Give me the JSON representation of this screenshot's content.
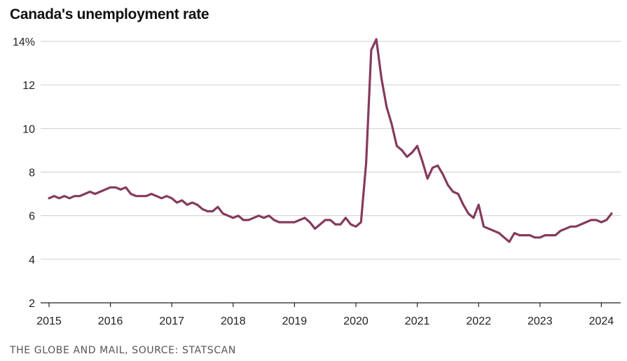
{
  "chart_data": {
    "type": "line",
    "title": "Canada's unemployment rate",
    "xlabel": "",
    "ylabel": "",
    "ylim": [
      2,
      14
    ],
    "xlim": [
      2015.0,
      2024.25
    ],
    "y_ticks": [
      {
        "value": 14,
        "label": "14%"
      },
      {
        "value": 12,
        "label": "12"
      },
      {
        "value": 10,
        "label": "10"
      },
      {
        "value": 8,
        "label": "8"
      },
      {
        "value": 6,
        "label": "6"
      },
      {
        "value": 4,
        "label": "4"
      },
      {
        "value": 2,
        "label": "2"
      }
    ],
    "x_ticks": [
      {
        "value": 2015,
        "label": "2015"
      },
      {
        "value": 2016,
        "label": "2016"
      },
      {
        "value": 2017,
        "label": "2017"
      },
      {
        "value": 2018,
        "label": "2018"
      },
      {
        "value": 2019,
        "label": "2019"
      },
      {
        "value": 2020,
        "label": "2020"
      },
      {
        "value": 2021,
        "label": "2021"
      },
      {
        "value": 2022,
        "label": "2022"
      },
      {
        "value": 2023,
        "label": "2023"
      },
      {
        "value": 2024,
        "label": "2024"
      }
    ],
    "grid": true,
    "line_color": "#853a5e",
    "series": [
      {
        "name": "Unemployment rate",
        "start": 2015.0,
        "step": 0.0833333,
        "values": [
          6.8,
          6.9,
          6.8,
          6.9,
          6.8,
          6.9,
          6.9,
          7.0,
          7.1,
          7.0,
          7.1,
          7.2,
          7.3,
          7.3,
          7.2,
          7.3,
          7.0,
          6.9,
          6.9,
          6.9,
          7.0,
          6.9,
          6.8,
          6.9,
          6.8,
          6.6,
          6.7,
          6.5,
          6.6,
          6.5,
          6.3,
          6.2,
          6.2,
          6.4,
          6.1,
          6.0,
          5.9,
          6.0,
          5.8,
          5.8,
          5.9,
          6.0,
          5.9,
          6.0,
          5.8,
          5.7,
          5.7,
          5.7,
          5.7,
          5.8,
          5.9,
          5.7,
          5.4,
          5.6,
          5.8,
          5.8,
          5.6,
          5.6,
          5.9,
          5.6,
          5.5,
          5.7,
          8.4,
          13.6,
          14.1,
          12.3,
          11.0,
          10.2,
          9.2,
          9.0,
          8.7,
          8.9,
          9.2,
          8.5,
          7.7,
          8.2,
          8.3,
          7.9,
          7.4,
          7.1,
          7.0,
          6.5,
          6.1,
          5.9,
          6.5,
          5.5,
          5.4,
          5.3,
          5.2,
          5.0,
          4.8,
          5.2,
          5.1,
          5.1,
          5.1,
          5.0,
          5.0,
          5.1,
          5.1,
          5.1,
          5.3,
          5.4,
          5.5,
          5.5,
          5.6,
          5.7,
          5.8,
          5.8,
          5.7,
          5.8,
          6.1
        ]
      }
    ]
  },
  "credit": "THE GLOBE AND MAIL, SOURCE: STATSCAN"
}
